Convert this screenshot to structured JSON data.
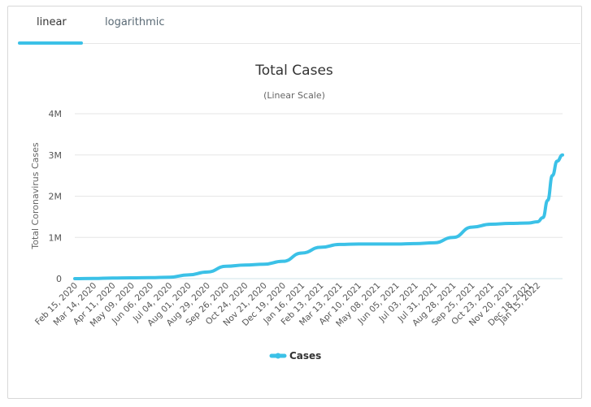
{
  "tabs": [
    {
      "label": "linear",
      "active": true
    },
    {
      "label": "logarithmic",
      "active": false
    }
  ],
  "colors": {
    "accent": "#3bc1e7",
    "series": "#3bc1e7",
    "grid": "#e6e6e6",
    "text": "#333333"
  },
  "chart_data": {
    "type": "line",
    "title": "Total Cases",
    "subtitle": "(Linear Scale)",
    "xlabel": "",
    "ylabel": "Total Coronavirus Cases",
    "ylim": [
      0,
      4000000
    ],
    "y_ticks": [
      {
        "value": 0,
        "label": "0"
      },
      {
        "value": 1000000,
        "label": "1M"
      },
      {
        "value": 2000000,
        "label": "2M"
      },
      {
        "value": 3000000,
        "label": "3M"
      },
      {
        "value": 4000000,
        "label": "4M"
      }
    ],
    "x_start": "2020-02-15",
    "x_end": "2022-02-06",
    "x_tick_labels": [
      "Feb 15, 2020",
      "Mar 14, 2020",
      "Apr 11, 2020",
      "May 09, 2020",
      "Jun 06, 2020",
      "Jul 04, 2020",
      "Aug 01, 2020",
      "Aug 29, 2020",
      "Sep 26, 2020",
      "Oct 24, 2020",
      "Nov 21, 2020",
      "Dec 19, 2020",
      "Jan 16, 2021",
      "Feb 13, 2021",
      "Mar 13, 2021",
      "Apr 10, 2021",
      "May 08, 2021",
      "Jun 05, 2021",
      "Jul 03, 2021",
      "Jul 31, 2021",
      "Aug 28, 2021",
      "Sep 25, 2021",
      "Oct 23, 2021",
      "Nov 20, 2021",
      "Dec 18, 2021",
      "Jan 15, 2022"
    ],
    "grid": true,
    "legend": {
      "position": "bottom-center"
    },
    "series": [
      {
        "name": "Cases",
        "x": [
          "2020-02-15",
          "2020-03-14",
          "2020-04-11",
          "2020-05-09",
          "2020-06-06",
          "2020-07-04",
          "2020-08-01",
          "2020-08-29",
          "2020-09-26",
          "2020-10-24",
          "2020-11-21",
          "2020-12-19",
          "2021-01-16",
          "2021-02-13",
          "2021-03-13",
          "2021-04-10",
          "2021-05-08",
          "2021-06-05",
          "2021-07-03",
          "2021-07-31",
          "2021-08-28",
          "2021-09-25",
          "2021-10-23",
          "2021-11-20",
          "2021-12-18",
          "2021-12-31",
          "2022-01-08",
          "2022-01-15",
          "2022-01-22",
          "2022-01-29",
          "2022-02-06"
        ],
        "y": [
          0,
          5000,
          15000,
          20000,
          25000,
          35000,
          90000,
          160000,
          300000,
          330000,
          350000,
          420000,
          620000,
          760000,
          830000,
          840000,
          840000,
          840000,
          850000,
          870000,
          1000000,
          1250000,
          1320000,
          1340000,
          1350000,
          1380000,
          1480000,
          1900000,
          2500000,
          2850000,
          3000000
        ]
      }
    ]
  }
}
